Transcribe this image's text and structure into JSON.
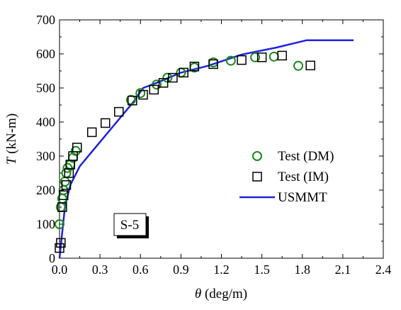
{
  "chart_data": {
    "type": "scatter",
    "xlabel": {
      "symbol": "θ",
      "unit": " (deg/m)"
    },
    "ylabel": {
      "symbol": "T",
      "unit": " (kN-m)"
    },
    "xlim": [
      0.0,
      2.4
    ],
    "ylim": [
      0,
      700
    ],
    "xticks": [
      "0.0",
      "0.3",
      "0.6",
      "0.9",
      "1.2",
      "1.5",
      "1.8",
      "2.1",
      "2.4"
    ],
    "yticks": [
      "0",
      "100",
      "200",
      "300",
      "400",
      "500",
      "600",
      "700"
    ],
    "grid": false,
    "legend_position": "right",
    "annotation": "S-5",
    "series": [
      {
        "name": "Test (DM)",
        "marker": "circle-open",
        "color": "#1a8a1a",
        "x": [
          0.0,
          0.01,
          0.02,
          0.03,
          0.04,
          0.05,
          0.06,
          0.08,
          0.1,
          0.12,
          0.53,
          0.6,
          0.72,
          0.8,
          0.9,
          1.0,
          1.14,
          1.27,
          1.45,
          1.59,
          1.77
        ],
        "y": [
          100,
          150,
          175,
          200,
          225,
          250,
          265,
          275,
          295,
          315,
          465,
          485,
          510,
          530,
          545,
          560,
          575,
          580,
          590,
          592,
          565
        ]
      },
      {
        "name": "Test (IM)",
        "marker": "square-open",
        "color": "#000000",
        "x": [
          0.0,
          0.01,
          0.02,
          0.03,
          0.05,
          0.07,
          0.08,
          0.1,
          0.13,
          0.24,
          0.34,
          0.44,
          0.54,
          0.62,
          0.7,
          0.77,
          0.84,
          0.92,
          1.0,
          1.14,
          1.35,
          1.5,
          1.65,
          1.86
        ],
        "y": [
          30,
          45,
          150,
          185,
          215,
          250,
          275,
          300,
          325,
          370,
          397,
          430,
          463,
          480,
          495,
          515,
          530,
          545,
          563,
          570,
          582,
          590,
          595,
          566
        ]
      },
      {
        "name": "USMMT",
        "type": "line",
        "color": "#1f22e0",
        "x": [
          0.0,
          0.02,
          0.04,
          0.08,
          0.15,
          0.35,
          0.55,
          0.62,
          0.72,
          0.9,
          1.1,
          1.35,
          1.6,
          1.83,
          2.18
        ],
        "y": [
          0,
          75,
          150,
          215,
          270,
          365,
          460,
          500,
          515,
          545,
          565,
          598,
          618,
          640,
          640
        ]
      }
    ]
  }
}
